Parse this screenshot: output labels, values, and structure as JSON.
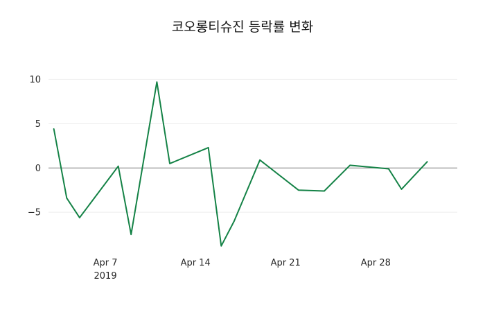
{
  "chart": {
    "title": "코오롱티슈진 등락률 변화",
    "line_color": "#148246",
    "zero_line_color": "#7f7f7f",
    "grid_color": "#ededed",
    "tick_color": "#262626",
    "title_color": "#111111",
    "background_color": "#ffffff"
  },
  "chart_data": {
    "type": "line",
    "title": "코오롱티슈진 등락률 변화",
    "series_name": "등락률",
    "x": [
      "2019-04-03",
      "2019-04-04",
      "2019-04-05",
      "2019-04-08",
      "2019-04-09",
      "2019-04-11",
      "2019-04-12",
      "2019-04-15",
      "2019-04-16",
      "2019-04-17",
      "2019-04-19",
      "2019-04-22",
      "2019-04-24",
      "2019-04-26",
      "2019-04-29",
      "2019-04-30",
      "2019-05-02"
    ],
    "values": [
      4.4,
      -3.4,
      -5.6,
      0.2,
      -7.5,
      9.7,
      0.5,
      2.3,
      -8.8,
      -6.0,
      0.9,
      -2.5,
      -2.6,
      0.3,
      -0.1,
      -2.4,
      0.7
    ],
    "xticks": [
      {
        "label": "Apr 7",
        "sub": "2019",
        "date": "2019-04-07"
      },
      {
        "label": "Apr 14",
        "date": "2019-04-14"
      },
      {
        "label": "Apr 21",
        "date": "2019-04-21"
      },
      {
        "label": "Apr 28",
        "date": "2019-04-28"
      }
    ],
    "yticks": [
      10,
      5,
      0,
      -5
    ],
    "ylim": [
      -9.6,
      12.3
    ],
    "xlim": [
      "2019-04-02T14:00:00",
      "2019-05-04T08:00:00"
    ],
    "xlabel": "",
    "ylabel": "",
    "legend": "none",
    "grid": "horizontal-faint",
    "zero_line": true
  }
}
